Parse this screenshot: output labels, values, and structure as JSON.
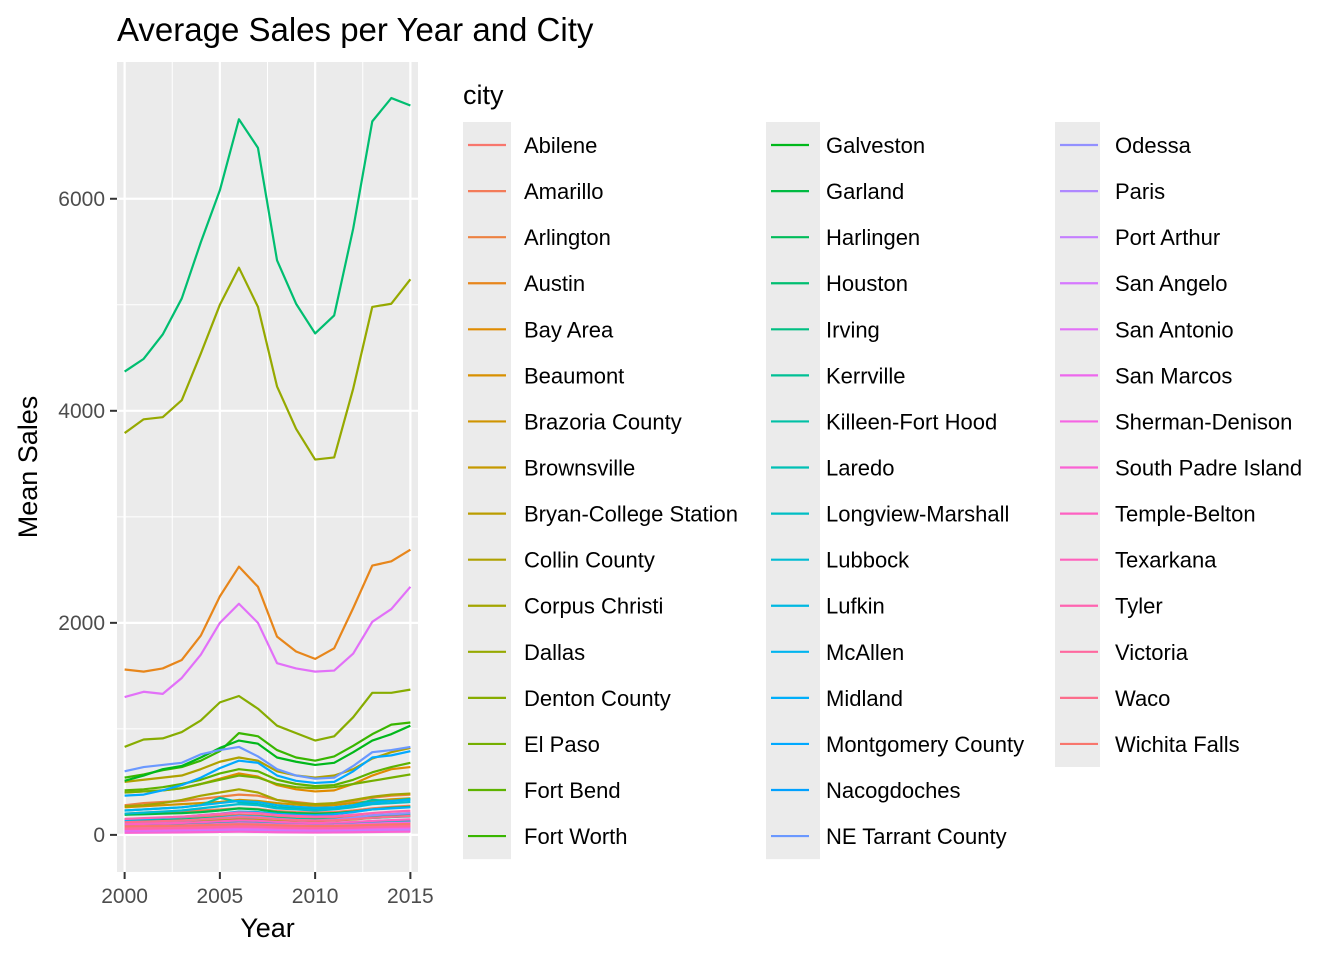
{
  "chart_data": {
    "type": "line",
    "title": "Average Sales per Year and City",
    "xlabel": "Year",
    "ylabel": "Mean Sales",
    "xlim": [
      1999.6,
      2015.4
    ],
    "ylim": [
      -350,
      7290
    ],
    "x_ticks": [
      "2000",
      "2005",
      "2010",
      "2015"
    ],
    "y_ticks": [
      "0",
      "2000",
      "4000",
      "6000"
    ],
    "x": [
      2000,
      2001,
      2002,
      2003,
      2004,
      2005,
      2006,
      2007,
      2008,
      2009,
      2010,
      2011,
      2012,
      2013,
      2014,
      2015
    ],
    "grid": true,
    "legend_title": "city",
    "legend_position": "right",
    "series": [
      {
        "name": "Abilene",
        "color": "#F8766D",
        "values": [
          150,
          155,
          160,
          165,
          170,
          180,
          190,
          185,
          170,
          160,
          155,
          160,
          170,
          185,
          195,
          205
        ]
      },
      {
        "name": "Amarillo",
        "color": "#F37B59",
        "values": [
          200,
          210,
          215,
          220,
          230,
          240,
          250,
          245,
          225,
          215,
          210,
          215,
          230,
          250,
          265,
          275
        ]
      },
      {
        "name": "Arlington",
        "color": "#ED8141",
        "values": [
          280,
          300,
          310,
          320,
          340,
          360,
          380,
          370,
          330,
          310,
          290,
          295,
          320,
          350,
          370,
          380
        ]
      },
      {
        "name": "Austin",
        "color": "#E7861B",
        "values": [
          1560,
          1540,
          1570,
          1650,
          1880,
          2250,
          2530,
          2340,
          1870,
          1730,
          1660,
          1760,
          2140,
          2540,
          2580,
          2690
        ]
      },
      {
        "name": "Bay Area",
        "color": "#E08B00",
        "values": [
          400,
          410,
          420,
          440,
          480,
          530,
          580,
          550,
          470,
          430,
          410,
          420,
          480,
          560,
          620,
          640
        ]
      },
      {
        "name": "Beaumont",
        "color": "#D89000",
        "values": [
          90,
          92,
          95,
          98,
          102,
          108,
          115,
          112,
          104,
          98,
          95,
          97,
          102,
          110,
          116,
          120
        ]
      },
      {
        "name": "Brazoria County",
        "color": "#CF9400",
        "values": [
          260,
          270,
          280,
          290,
          300,
          310,
          330,
          320,
          300,
          285,
          275,
          280,
          300,
          320,
          335,
          345
        ]
      },
      {
        "name": "Brownsville",
        "color": "#C59900",
        "values": [
          60,
          62,
          64,
          66,
          70,
          74,
          80,
          78,
          72,
          68,
          66,
          67,
          70,
          75,
          80,
          84
        ]
      },
      {
        "name": "Bryan-College Station",
        "color": "#BB9D00",
        "values": [
          110,
          115,
          120,
          125,
          135,
          145,
          155,
          150,
          140,
          135,
          130,
          135,
          145,
          160,
          170,
          180
        ]
      },
      {
        "name": "Collin County",
        "color": "#AFA100",
        "values": [
          500,
          520,
          540,
          560,
          620,
          690,
          730,
          700,
          600,
          560,
          540,
          560,
          620,
          720,
          780,
          820
        ]
      },
      {
        "name": "Corpus Christi",
        "color": "#A3A500",
        "values": [
          270,
          280,
          300,
          330,
          370,
          400,
          430,
          400,
          330,
          300,
          290,
          300,
          330,
          360,
          380,
          390
        ]
      },
      {
        "name": "Dallas",
        "color": "#96A900",
        "values": [
          3790,
          3920,
          3940,
          4100,
          4540,
          5000,
          5350,
          4980,
          4230,
          3830,
          3540,
          3560,
          4210,
          4980,
          5010,
          5240
        ]
      },
      {
        "name": "Denton County",
        "color": "#87AC00",
        "values": [
          830,
          900,
          910,
          970,
          1080,
          1250,
          1310,
          1190,
          1030,
          960,
          890,
          930,
          1110,
          1340,
          1340,
          1370
        ]
      },
      {
        "name": "El Paso",
        "color": "#75AF00",
        "values": [
          400,
          410,
          420,
          440,
          480,
          520,
          560,
          540,
          480,
          450,
          440,
          450,
          480,
          510,
          540,
          570
        ]
      },
      {
        "name": "Fort Bend",
        "color": "#5EB300",
        "values": [
          420,
          430,
          450,
          480,
          520,
          580,
          620,
          600,
          520,
          480,
          460,
          470,
          520,
          590,
          640,
          680
        ]
      },
      {
        "name": "Fort Worth",
        "color": "#39B600",
        "values": [
          540,
          570,
          610,
          640,
          700,
          790,
          960,
          930,
          800,
          730,
          700,
          740,
          840,
          950,
          1040,
          1060
        ]
      },
      {
        "name": "Galveston",
        "color": "#00B81B",
        "values": [
          510,
          560,
          620,
          650,
          730,
          820,
          890,
          860,
          730,
          690,
          660,
          680,
          780,
          890,
          950,
          1030
        ]
      },
      {
        "name": "Garland",
        "color": "#00BA42",
        "values": [
          190,
          195,
          200,
          205,
          215,
          230,
          250,
          240,
          215,
          205,
          200,
          205,
          220,
          240,
          255,
          265
        ]
      },
      {
        "name": "Harlingen",
        "color": "#00BC5A",
        "values": [
          90,
          95,
          100,
          105,
          110,
          118,
          125,
          120,
          110,
          105,
          100,
          102,
          108,
          116,
          122,
          128
        ]
      },
      {
        "name": "Houston",
        "color": "#00BE70",
        "values": [
          4370,
          4490,
          4720,
          5060,
          5590,
          6080,
          6750,
          6480,
          5420,
          5010,
          4730,
          4900,
          5720,
          6730,
          6950,
          6880
        ]
      },
      {
        "name": "Irving",
        "color": "#00BF82",
        "values": [
          130,
          135,
          140,
          145,
          155,
          165,
          180,
          175,
          160,
          150,
          145,
          148,
          158,
          172,
          182,
          190
        ]
      },
      {
        "name": "Kerrville",
        "color": "#00C094",
        "values": [
          40,
          42,
          44,
          46,
          50,
          54,
          58,
          56,
          50,
          47,
          45,
          46,
          49,
          53,
          56,
          58
        ]
      },
      {
        "name": "Killeen-Fort Hood",
        "color": "#00C0A5",
        "values": [
          230,
          240,
          250,
          260,
          280,
          350,
          310,
          290,
          260,
          250,
          240,
          250,
          280,
          330,
          320,
          340
        ]
      },
      {
        "name": "Laredo",
        "color": "#00C0B5",
        "values": [
          120,
          125,
          130,
          135,
          145,
          155,
          165,
          160,
          150,
          145,
          140,
          142,
          150,
          160,
          168,
          175
        ]
      },
      {
        "name": "Longview-Marshall",
        "color": "#00BEC4",
        "values": [
          100,
          104,
          108,
          112,
          118,
          125,
          132,
          128,
          118,
          112,
          108,
          110,
          116,
          124,
          130,
          136
        ]
      },
      {
        "name": "Lubbock",
        "color": "#00BCD3",
        "values": [
          200,
          210,
          220,
          230,
          250,
          270,
          290,
          280,
          250,
          240,
          230,
          240,
          260,
          290,
          300,
          310
        ]
      },
      {
        "name": "Lufkin",
        "color": "#00B8E1",
        "values": [
          50,
          52,
          54,
          56,
          60,
          64,
          68,
          66,
          60,
          57,
          55,
          56,
          59,
          63,
          66,
          68
        ]
      },
      {
        "name": "McAllen",
        "color": "#00B4EF",
        "values": [
          230,
          240,
          250,
          260,
          280,
          300,
          320,
          310,
          280,
          265,
          255,
          260,
          280,
          305,
          320,
          330
        ]
      },
      {
        "name": "Midland",
        "color": "#00AFFB",
        "values": [
          140,
          150,
          160,
          170,
          185,
          200,
          220,
          215,
          200,
          190,
          185,
          195,
          215,
          240,
          250,
          260
        ]
      },
      {
        "name": "Montgomery County",
        "color": "#00A9FF",
        "values": [
          370,
          380,
          420,
          470,
          540,
          630,
          700,
          680,
          560,
          510,
          490,
          500,
          600,
          730,
          750,
          790
        ]
      },
      {
        "name": "Nacogdoches",
        "color": "#00A1FF",
        "values": [
          30,
          31,
          32,
          33,
          35,
          37,
          40,
          39,
          36,
          34,
          33,
          34,
          36,
          38,
          40,
          42
        ]
      },
      {
        "name": "NE Tarrant County",
        "color": "#6A98FF",
        "values": [
          600,
          640,
          660,
          680,
          760,
          800,
          830,
          740,
          620,
          560,
          530,
          540,
          650,
          780,
          800,
          830
        ]
      },
      {
        "name": "Odessa",
        "color": "#9290FF",
        "values": [
          110,
          118,
          126,
          134,
          146,
          160,
          176,
          170,
          152,
          142,
          136,
          144,
          162,
          186,
          196,
          204
        ]
      },
      {
        "name": "Paris",
        "color": "#AF88FF",
        "values": [
          25,
          26,
          27,
          28,
          30,
          32,
          34,
          33,
          30,
          28,
          27,
          28,
          30,
          32,
          34,
          35
        ]
      },
      {
        "name": "Port Arthur",
        "color": "#C47FFF",
        "values": [
          35,
          36,
          38,
          40,
          42,
          45,
          48,
          46,
          42,
          40,
          38,
          39,
          42,
          45,
          48,
          50
        ]
      },
      {
        "name": "San Angelo",
        "color": "#D678FF",
        "values": [
          70,
          73,
          76,
          80,
          85,
          90,
          96,
          93,
          86,
          82,
          79,
          81,
          86,
          92,
          97,
          101
        ]
      },
      {
        "name": "San Antonio",
        "color": "#E270F8",
        "values": [
          1300,
          1350,
          1330,
          1480,
          1700,
          2000,
          2180,
          2000,
          1620,
          1570,
          1540,
          1550,
          1710,
          2010,
          2130,
          2340
        ]
      },
      {
        "name": "San Marcos",
        "color": "#ED68ED",
        "values": [
          45,
          47,
          49,
          51,
          55,
          59,
          64,
          62,
          56,
          53,
          51,
          52,
          56,
          61,
          64,
          67
        ]
      },
      {
        "name": "Sherman-Denison",
        "color": "#F564E3",
        "values": [
          80,
          83,
          86,
          90,
          96,
          103,
          110,
          107,
          98,
          93,
          90,
          92,
          98,
          106,
          112,
          116
        ]
      },
      {
        "name": "South Padre Island",
        "color": "#FA62D4",
        "values": [
          20,
          21,
          22,
          24,
          26,
          28,
          30,
          28,
          25,
          23,
          22,
          23,
          25,
          27,
          29,
          30
        ]
      },
      {
        "name": "Temple-Belton",
        "color": "#FE61C2",
        "values": [
          100,
          104,
          108,
          113,
          120,
          128,
          137,
          133,
          122,
          116,
          112,
          115,
          122,
          132,
          139,
          146
        ]
      },
      {
        "name": "Texarkana",
        "color": "#FF62BC",
        "values": [
          55,
          57,
          60,
          62,
          66,
          70,
          75,
          73,
          67,
          63,
          61,
          62,
          66,
          71,
          75,
          78
        ]
      },
      {
        "name": "Tyler",
        "color": "#FF64B0",
        "values": [
          150,
          158,
          165,
          172,
          185,
          198,
          212,
          206,
          188,
          178,
          172,
          176,
          190,
          206,
          218,
          228
        ]
      },
      {
        "name": "Victoria",
        "color": "#FF689F",
        "values": [
          60,
          62,
          65,
          68,
          72,
          77,
          82,
          80,
          73,
          69,
          67,
          68,
          72,
          78,
          82,
          85
        ]
      },
      {
        "name": "Waco",
        "color": "#FC6D8B",
        "values": [
          120,
          125,
          130,
          136,
          145,
          155,
          166,
          162,
          148,
          140,
          135,
          138,
          148,
          162,
          171,
          178
        ]
      },
      {
        "name": "Wichita Falls",
        "color": "#F8766D",
        "values": [
          80,
          82,
          84,
          87,
          91,
          96,
          101,
          98,
          91,
          87,
          84,
          85,
          89,
          95,
          99,
          103
        ]
      }
    ]
  }
}
